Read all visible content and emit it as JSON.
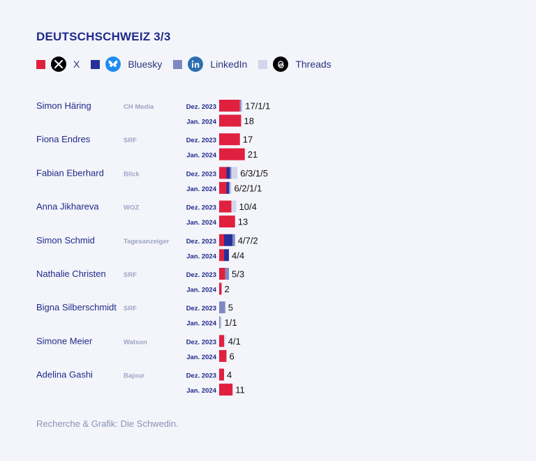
{
  "title": "DEUTSCHSCHWEIZ  3/3",
  "legend": [
    {
      "name": "X",
      "color": "#e0203f",
      "icon": "x-logo-icon"
    },
    {
      "name": "Bluesky",
      "color": "#27309a",
      "icon": "bluesky-butterfly-icon"
    },
    {
      "name": "LinkedIn",
      "color": "#8088c4",
      "icon": "linkedin-icon"
    },
    {
      "name": "Threads",
      "color": "#d2d6eb",
      "icon": "threads-icon"
    }
  ],
  "footer": "Recherche & Grafik: Die Schwedin.",
  "chart_data": {
    "type": "bar",
    "stacked": true,
    "orientation": "horizontal",
    "periods": [
      "Dez. 2023",
      "Jan. 2024"
    ],
    "series_order": [
      "X",
      "Bluesky",
      "LinkedIn",
      "Threads"
    ],
    "people": [
      {
        "name": "Simon Häring",
        "outlet": "CH Media",
        "rows": [
          {
            "period": "Dez. 2023",
            "label": "17/1/1",
            "values": [
              17,
              0,
              1,
              1
            ]
          },
          {
            "period": "Jan. 2024",
            "label": "18",
            "values": [
              18,
              0,
              0,
              0
            ]
          }
        ]
      },
      {
        "name": "Fiona Endres",
        "outlet": "SRF",
        "rows": [
          {
            "period": "Dez. 2023",
            "label": "17",
            "values": [
              17,
              0,
              0,
              0
            ]
          },
          {
            "period": "Jan. 2024",
            "label": "21",
            "values": [
              21,
              0,
              0,
              0
            ]
          }
        ]
      },
      {
        "name": "Fabian Eberhard",
        "outlet": "Blick",
        "rows": [
          {
            "period": "Dez. 2023",
            "label": "6/3/1/5",
            "values": [
              6,
              3,
              1,
              5
            ]
          },
          {
            "period": "Jan. 2024",
            "label": "6/2/1/1",
            "values": [
              6,
              2,
              1,
              1
            ]
          }
        ]
      },
      {
        "name": "Anna Jikhareva",
        "outlet": "WOZ",
        "rows": [
          {
            "period": "Dez. 2023",
            "label": "10/4",
            "values": [
              10,
              0,
              0,
              4
            ]
          },
          {
            "period": "Jan. 2024",
            "label": "13",
            "values": [
              13,
              0,
              0,
              0
            ]
          }
        ]
      },
      {
        "name": "Simon Schmid",
        "outlet": "Tagesanzeiger",
        "rows": [
          {
            "period": "Dez. 2023",
            "label": "4/7/2",
            "values": [
              4,
              7,
              2,
              0
            ]
          },
          {
            "period": "Jan. 2024",
            "label": "4/4",
            "values": [
              4,
              4,
              0,
              0
            ]
          }
        ]
      },
      {
        "name": "Nathalie Christen",
        "outlet": "SRF",
        "rows": [
          {
            "period": "Dez. 2023",
            "label": "5/3",
            "values": [
              5,
              0,
              3,
              0
            ]
          },
          {
            "period": "Jan. 2024",
            "label": "2",
            "values": [
              2,
              0,
              0,
              0
            ]
          }
        ]
      },
      {
        "name": "Bigna Silberschmidt",
        "outlet": "SRF",
        "rows": [
          {
            "period": "Dez. 2023",
            "label": "5",
            "values": [
              0,
              0,
              5,
              0
            ]
          },
          {
            "period": "Jan. 2024",
            "label": "1/1",
            "values": [
              0,
              0,
              1,
              1
            ]
          }
        ]
      },
      {
        "name": "Simone Meier",
        "outlet": "Watson",
        "rows": [
          {
            "period": "Dez. 2023",
            "label": "4/1",
            "values": [
              4,
              0,
              0,
              1
            ]
          },
          {
            "period": "Jan. 2024",
            "label": "6",
            "values": [
              6,
              0,
              0,
              0
            ]
          }
        ]
      },
      {
        "name": "Adelina Gashi",
        "outlet": "Bajour",
        "rows": [
          {
            "period": "Dez. 2023",
            "label": "4",
            "values": [
              4,
              0,
              0,
              0
            ]
          },
          {
            "period": "Jan. 2024",
            "label": "11",
            "values": [
              11,
              0,
              0,
              0
            ]
          }
        ]
      }
    ]
  }
}
